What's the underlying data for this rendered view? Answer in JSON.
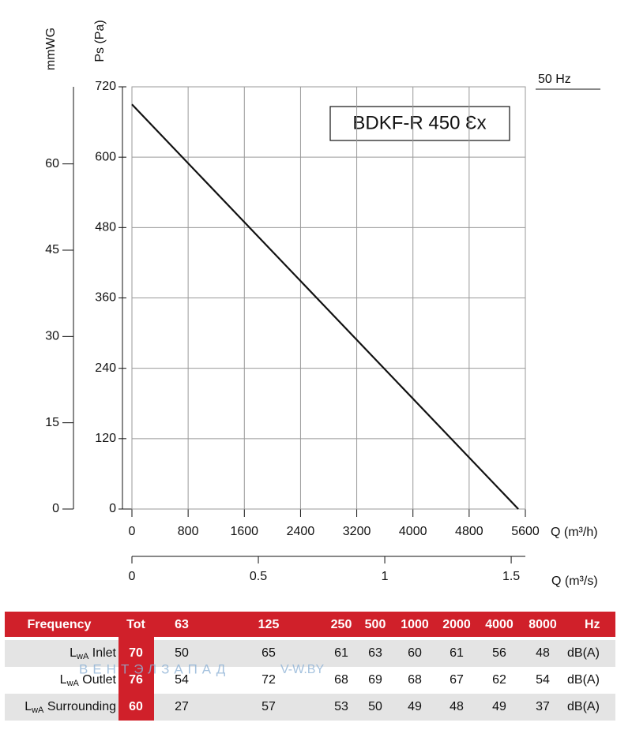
{
  "chart_data": {
    "type": "line",
    "model": "BDKF-R 450 Ɛx",
    "annotation": "50 Hz",
    "x_label": "Q (m³/h)",
    "x2_label": "Q (m³/s)",
    "y_label": "Ps (Pa)",
    "y2_label": "mmWG",
    "x": [
      0,
      5500
    ],
    "series": [
      {
        "name": "BDKF-R 450 Ɛx",
        "color": "#111111",
        "values": [
          690,
          0
        ]
      }
    ],
    "xlim": [
      0,
      5600
    ],
    "xticks": [
      0,
      800,
      1600,
      2400,
      3200,
      4000,
      4800,
      5600
    ],
    "x2lim": [
      0,
      1.556
    ],
    "x2ticks": [
      0,
      0.5,
      1,
      1.5
    ],
    "ylim": [
      0,
      720
    ],
    "yticks": [
      0,
      120,
      240,
      360,
      480,
      600,
      720
    ],
    "y2lim": [
      0,
      73.4
    ],
    "y2ticks": [
      0,
      15,
      30,
      45,
      60
    ],
    "grid": true
  },
  "table": {
    "header": [
      "Frequency",
      "Tot",
      "63",
      "125",
      "250",
      "500",
      "1000",
      "2000",
      "4000",
      "8000",
      "Hz"
    ],
    "rows": [
      {
        "label": {
          "symbol": "L",
          "sub": "wA",
          "name": " Inlet"
        },
        "values": [
          70,
          50,
          65,
          61,
          63,
          60,
          61,
          56,
          48
        ],
        "unit": "dB(A)"
      },
      {
        "label": {
          "symbol": "L",
          "sub": "wA",
          "name": " Outlet"
        },
        "values": [
          76,
          54,
          72,
          68,
          69,
          68,
          67,
          62,
          54
        ],
        "unit": "dB(A)"
      },
      {
        "label": {
          "symbol": "L",
          "sub": "wA",
          "name": " Surrounding"
        },
        "values": [
          60,
          27,
          57,
          53,
          50,
          49,
          48,
          49,
          37
        ],
        "unit": "dB(A)"
      }
    ]
  },
  "watermark": [
    "ВЕНТЭЛЗАПАД",
    "V-W.BY"
  ]
}
